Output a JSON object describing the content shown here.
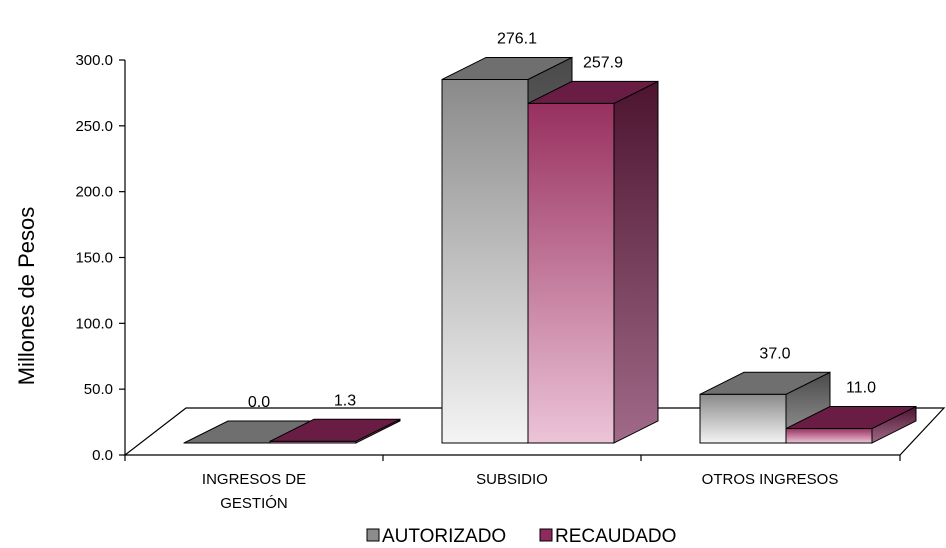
{
  "chart_data": {
    "type": "bar",
    "ylabel": "Millones de Pesos",
    "ylim": [
      0,
      300
    ],
    "yticks": [
      "0.0",
      "50.0",
      "100.0",
      "150.0",
      "200.0",
      "250.0",
      "300.0"
    ],
    "categories": [
      [
        "INGRESOS DE",
        "GESTIÓN"
      ],
      [
        "SUBSIDIO"
      ],
      [
        "OTROS INGRESOS"
      ]
    ],
    "series": [
      {
        "name": "AUTORIZADO",
        "values": [
          0.0,
          276.1,
          37.0
        ],
        "labels": [
          "0.0",
          "276.1",
          "37.0"
        ],
        "color": "#8c8c8c"
      },
      {
        "name": "RECAUDADO",
        "values": [
          1.3,
          257.9,
          11.0
        ],
        "labels": [
          "1.3",
          "257.9",
          "11.0"
        ],
        "color": "#8e2a5e"
      }
    ],
    "legend_position": "bottom",
    "grid": false
  }
}
